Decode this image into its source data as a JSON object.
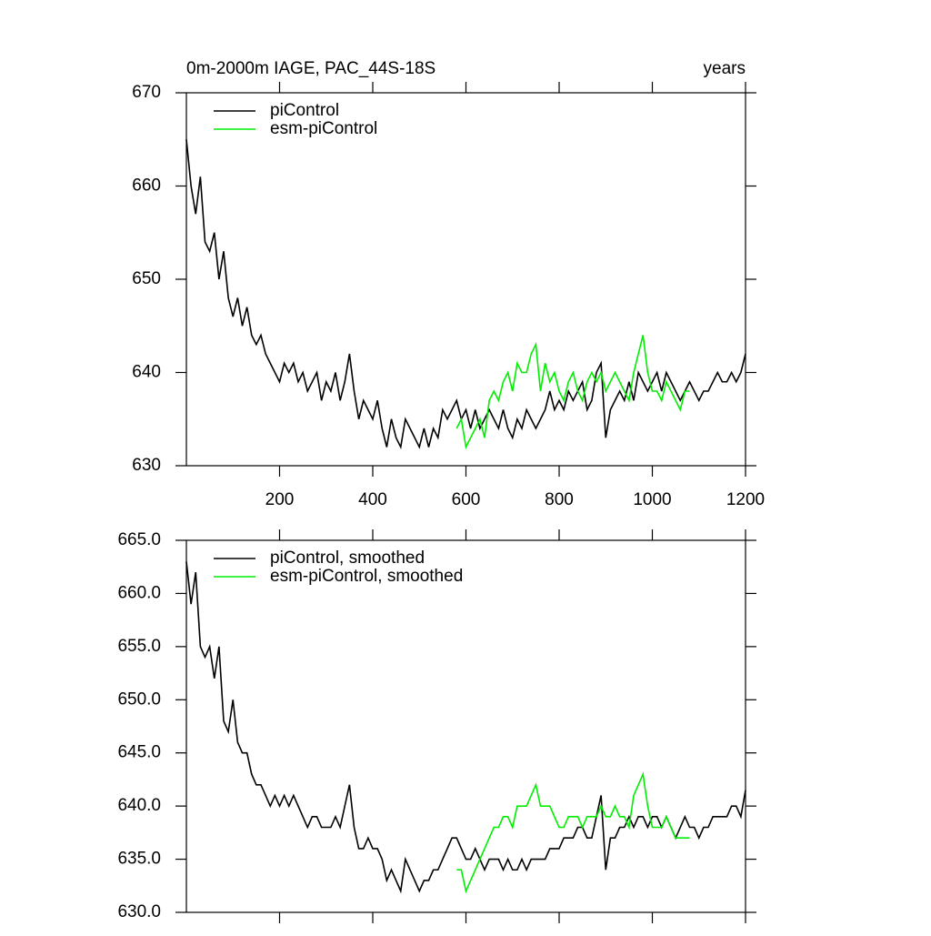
{
  "chart_data": [
    {
      "type": "line",
      "title": "0m-2000m IAGE, PAC_44S-18S",
      "xlabel": "years",
      "xlim": [
        0,
        1200
      ],
      "xticks": [
        200,
        400,
        600,
        800,
        1000,
        1200
      ],
      "ylim": [
        630,
        670
      ],
      "yticks": [
        630,
        640,
        650,
        660,
        670
      ],
      "legend": "upper left",
      "series": [
        {
          "name": "piControl",
          "color": "#000000",
          "x": [
            0,
            10,
            20,
            30,
            40,
            50,
            60,
            70,
            80,
            90,
            100,
            110,
            120,
            130,
            140,
            150,
            160,
            170,
            180,
            190,
            200,
            210,
            220,
            230,
            240,
            250,
            260,
            270,
            280,
            290,
            300,
            310,
            320,
            330,
            340,
            350,
            360,
            370,
            380,
            390,
            400,
            410,
            420,
            430,
            440,
            450,
            460,
            470,
            480,
            490,
            500,
            510,
            520,
            530,
            540,
            550,
            560,
            570,
            580,
            590,
            600,
            610,
            620,
            630,
            640,
            650,
            660,
            670,
            680,
            690,
            700,
            710,
            720,
            730,
            740,
            750,
            760,
            770,
            780,
            790,
            800,
            810,
            820,
            830,
            840,
            850,
            860,
            870,
            880,
            890,
            900,
            910,
            920,
            930,
            940,
            950,
            960,
            970,
            980,
            990,
            1000,
            1010,
            1020,
            1030,
            1040,
            1050,
            1060,
            1070,
            1080,
            1090,
            1100,
            1110,
            1120,
            1130,
            1140,
            1150,
            1160,
            1170,
            1180,
            1190,
            1200
          ],
          "values": [
            665,
            660,
            657,
            661,
            654,
            653,
            655,
            650,
            653,
            648,
            646,
            648,
            645,
            647,
            644,
            643,
            644,
            642,
            641,
            640,
            639,
            641,
            640,
            641,
            639,
            640,
            638,
            639,
            640,
            637,
            639,
            638,
            640,
            637,
            639,
            642,
            638,
            635,
            637,
            636,
            635,
            637,
            634,
            632,
            635,
            633,
            632,
            635,
            634,
            633,
            632,
            634,
            632,
            634,
            633,
            636,
            635,
            636,
            637,
            635,
            636,
            634,
            636,
            634,
            635,
            636,
            635,
            634,
            636,
            634,
            633,
            635,
            634,
            636,
            635,
            634,
            635,
            636,
            638,
            636,
            637,
            636,
            638,
            637,
            638,
            639,
            636,
            637,
            640,
            641,
            633,
            636,
            637,
            638,
            637,
            639,
            637,
            640,
            639,
            638,
            639,
            640,
            638,
            640,
            639,
            638,
            637,
            638,
            639,
            638,
            637,
            638,
            638,
            639,
            640,
            639,
            639,
            640,
            639,
            640,
            642
          ]
        },
        {
          "name": "esm-piControl",
          "color": "#00ee00",
          "x": [
            580,
            590,
            600,
            610,
            620,
            630,
            640,
            650,
            660,
            670,
            680,
            690,
            700,
            710,
            720,
            730,
            740,
            750,
            760,
            770,
            780,
            790,
            800,
            810,
            820,
            830,
            840,
            850,
            860,
            870,
            880,
            890,
            900,
            910,
            920,
            930,
            940,
            950,
            960,
            970,
            980,
            990,
            1000,
            1010,
            1020,
            1030,
            1040,
            1050,
            1060,
            1070,
            1080
          ],
          "values": [
            634,
            635,
            632,
            633,
            634,
            635,
            633,
            637,
            638,
            637,
            639,
            640,
            638,
            641,
            640,
            640,
            642,
            643,
            638,
            641,
            639,
            640,
            638,
            637,
            639,
            640,
            638,
            637,
            639,
            640,
            639,
            640,
            638,
            639,
            640,
            639,
            638,
            637,
            640,
            642,
            644,
            640,
            638,
            638,
            637,
            639,
            638,
            637,
            636,
            638,
            638
          ]
        }
      ]
    },
    {
      "type": "line",
      "xlim": [
        0,
        1200
      ],
      "ylim": [
        630,
        665
      ],
      "yticks": [
        {
          "value": 630,
          "label": "630.0"
        },
        {
          "value": 635,
          "label": "635.0"
        },
        {
          "value": 640,
          "label": "640.0"
        },
        {
          "value": 645,
          "label": "645.0"
        },
        {
          "value": 650,
          "label": "650.0"
        },
        {
          "value": 655,
          "label": "655.0"
        },
        {
          "value": 660,
          "label": "660.0"
        },
        {
          "value": 665,
          "label": "665.0"
        }
      ],
      "legend": "upper left",
      "series": [
        {
          "name": "piControl, smoothed",
          "color": "#000000",
          "x": [
            0,
            10,
            20,
            30,
            40,
            50,
            60,
            70,
            80,
            90,
            100,
            110,
            120,
            130,
            140,
            150,
            160,
            170,
            180,
            190,
            200,
            210,
            220,
            230,
            240,
            250,
            260,
            270,
            280,
            290,
            300,
            310,
            320,
            330,
            340,
            350,
            360,
            370,
            380,
            390,
            400,
            410,
            420,
            430,
            440,
            450,
            460,
            470,
            480,
            490,
            500,
            510,
            520,
            530,
            540,
            550,
            560,
            570,
            580,
            590,
            600,
            610,
            620,
            630,
            640,
            650,
            660,
            670,
            680,
            690,
            700,
            710,
            720,
            730,
            740,
            750,
            760,
            770,
            780,
            790,
            800,
            810,
            820,
            830,
            840,
            850,
            860,
            870,
            880,
            890,
            900,
            910,
            920,
            930,
            940,
            950,
            960,
            970,
            980,
            990,
            1000,
            1010,
            1020,
            1030,
            1040,
            1050,
            1060,
            1070,
            1080,
            1090,
            1100,
            1110,
            1120,
            1130,
            1140,
            1150,
            1160,
            1170,
            1180,
            1190,
            1200
          ],
          "values": [
            663,
            659,
            662,
            655,
            654,
            655,
            652,
            655,
            648,
            647,
            650,
            646,
            645,
            645,
            643,
            642,
            642,
            641,
            640,
            641,
            640,
            641,
            640,
            641,
            640,
            639,
            638,
            639,
            639,
            638,
            638,
            638,
            639,
            638,
            640,
            642,
            638,
            636,
            636,
            637,
            636,
            636,
            635,
            633,
            634,
            633,
            632,
            635,
            634,
            633,
            632,
            633,
            633,
            634,
            634,
            635,
            636,
            637,
            637,
            636,
            635,
            635,
            636,
            635,
            634,
            635,
            635,
            635,
            634,
            635,
            634,
            634,
            635,
            634,
            635,
            635,
            635,
            635,
            636,
            636,
            636,
            637,
            637,
            637,
            638,
            638,
            637,
            637,
            639,
            641,
            634,
            637,
            637,
            638,
            638,
            639,
            638,
            639,
            639,
            638,
            639,
            639,
            638,
            639,
            638,
            637,
            638,
            639,
            638,
            638,
            637,
            638,
            638,
            639,
            639,
            639,
            639,
            640,
            640,
            639,
            641.5
          ]
        },
        {
          "name": "esm-piControl, smoothed",
          "color": "#00ee00",
          "x": [
            580,
            590,
            600,
            610,
            620,
            630,
            640,
            650,
            660,
            670,
            680,
            690,
            700,
            710,
            720,
            730,
            740,
            750,
            760,
            770,
            780,
            790,
            800,
            810,
            820,
            830,
            840,
            850,
            860,
            870,
            880,
            890,
            900,
            910,
            920,
            930,
            940,
            950,
            960,
            970,
            980,
            990,
            1000,
            1010,
            1020,
            1030,
            1040,
            1050,
            1060,
            1070,
            1080
          ],
          "values": [
            634,
            634,
            632,
            633,
            634,
            635,
            636,
            637,
            638,
            638,
            639,
            639,
            638,
            640,
            640,
            640,
            641,
            642,
            640,
            640,
            640,
            639,
            638,
            638,
            639,
            639,
            639,
            638,
            639,
            639,
            639,
            640,
            639,
            639,
            640,
            639,
            639,
            638,
            641,
            642,
            643,
            640,
            638,
            638,
            638,
            639,
            638,
            637,
            637,
            637,
            637
          ]
        }
      ]
    }
  ]
}
